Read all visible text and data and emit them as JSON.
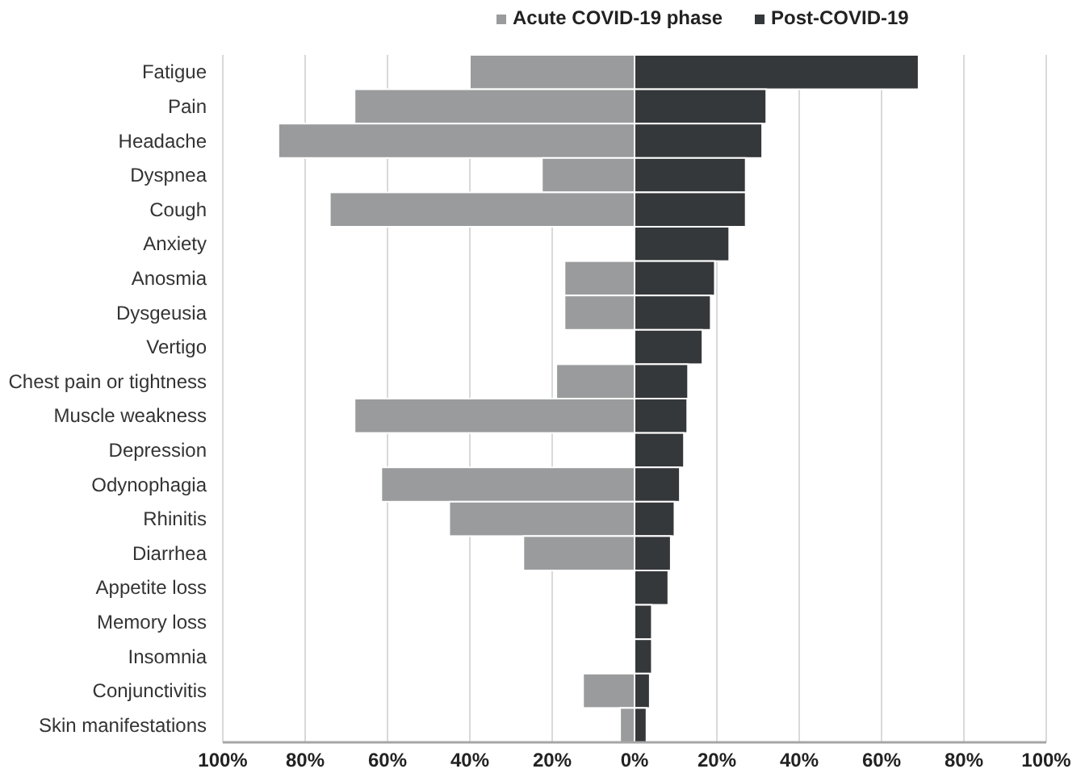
{
  "chart_data": {
    "type": "bar",
    "orientation": "horizontal",
    "stacked": true,
    "categories": [
      "Fatigue",
      "Pain",
      "Headache",
      "Dyspnea",
      "Cough",
      "Anxiety",
      "Anosmia",
      "Dysgeusia",
      "Vertigo",
      "Chest pain or tightness",
      "Muscle weakness",
      "Depression",
      "Odynophagia",
      "Rhinitis",
      "Diarrhea",
      "Appetite loss",
      "Memory loss",
      "Insomnia",
      "Conjunctivitis",
      "Skin manifestations"
    ],
    "series": [
      {
        "name": "Acute COVID-19 phase",
        "color": "#999b9c",
        "values": [
          -40,
          -68,
          -86.5,
          -22.5,
          -74,
          null,
          -17,
          -17,
          null,
          -19,
          -68,
          null,
          -61.5,
          -45,
          -27,
          null,
          null,
          null,
          -12.5,
          -3.5
        ]
      },
      {
        "name": "Post-COVID-19",
        "color": "#35383b",
        "values": [
          69,
          32,
          31,
          27,
          27,
          23,
          19.5,
          18.5,
          16.5,
          13,
          12.8,
          12,
          11,
          9.7,
          8.8,
          8.2,
          4.2,
          4.2,
          3.7,
          2.9
        ]
      }
    ],
    "xlim": [
      -100,
      100
    ],
    "xticks": [
      {
        "value": -100,
        "label": "100%"
      },
      {
        "value": -80,
        "label": "80%"
      },
      {
        "value": -60,
        "label": "60%"
      },
      {
        "value": -40,
        "label": "40%"
      },
      {
        "value": -20,
        "label": "20%"
      },
      {
        "value": 0,
        "label": "0%"
      },
      {
        "value": 20,
        "label": "20%"
      },
      {
        "value": 40,
        "label": "40%"
      },
      {
        "value": 60,
        "label": "60%"
      },
      {
        "value": 80,
        "label": "80%"
      },
      {
        "value": 100,
        "label": "100%"
      }
    ],
    "grid": "x",
    "legend": "top"
  }
}
